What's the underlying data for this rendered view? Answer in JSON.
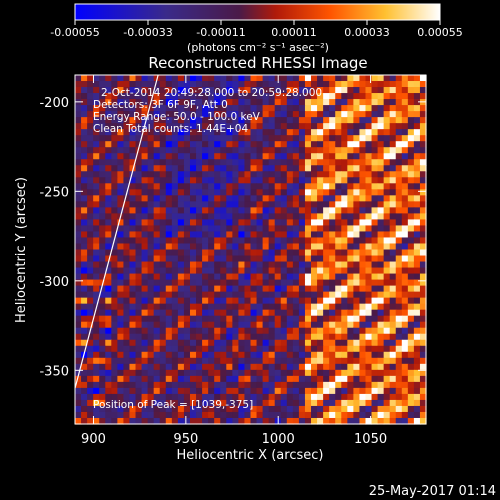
{
  "chart_data": {
    "type": "heatmap",
    "title": "Reconstructed RHESSI Image",
    "xlabel": "Heliocentric X (arcsec)",
    "ylabel": "Heliocentric Y (arcsec)",
    "xlim": [
      890,
      1080
    ],
    "ylim": [
      -380,
      -185
    ],
    "x_ticks": [
      900,
      950,
      1000,
      1050
    ],
    "y_ticks": [
      -200,
      -250,
      -300,
      -350
    ],
    "colorbar": {
      "min": -0.00055,
      "max": 0.00055,
      "ticks": [
        "-0.00055",
        "-0.00033",
        "-0.00011",
        "0.00011",
        "0.00033",
        "0.00055"
      ],
      "units": "(photons cm⁻² s⁻¹ asec⁻²)",
      "colormap": [
        "#0000ff",
        "#3a2a8a",
        "#5a1e5a",
        "#c8200a",
        "#ff6000",
        "#ffd040",
        "#ffffff"
      ]
    },
    "annotations": {
      "time": "2-Oct-2014 20:49:28.000 to 20:59:28.000",
      "detectors": "Detectors: 3F 6F 9F, Att 0",
      "energy": "Energy Range: 50.0 - 100.0 keV",
      "clean": "Clean     Total counts: 1.44E+04",
      "peak": "Position of Peak = [1039,-375]"
    },
    "limb_line": {
      "x": [
        890,
        935
      ],
      "y": [
        -360,
        -185
      ]
    },
    "peak": {
      "x": 1039,
      "y": -375
    }
  },
  "footer": {
    "date": "25-May-2017 01:14"
  }
}
